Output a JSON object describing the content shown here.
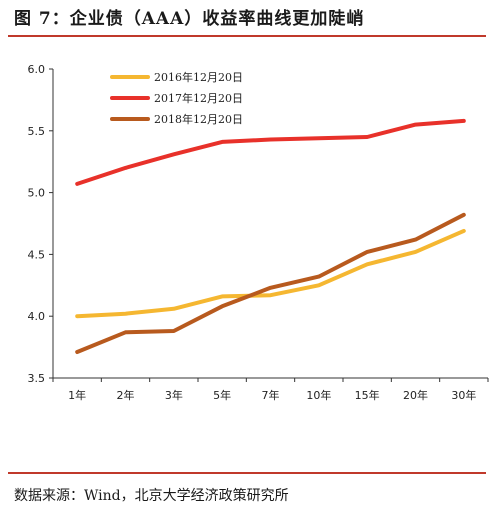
{
  "header": {
    "title": "图 7：企业债（AAA）收益率曲线更加陡峭"
  },
  "footer": {
    "source": "数据来源：Wind，北京大学经济政策研究所"
  },
  "chart_data": {
    "type": "line",
    "title": "",
    "xlabel": "",
    "ylabel": "",
    "categories": [
      "1年",
      "2年",
      "3年",
      "5年",
      "7年",
      "10年",
      "15年",
      "20年",
      "30年"
    ],
    "ylim": [
      3.5,
      6.0
    ],
    "yticks": [
      "3.5",
      "4.0",
      "4.5",
      "5.0",
      "5.5",
      "6.0"
    ],
    "grid": false,
    "legend": "top-left",
    "series": [
      {
        "name": "2016年12月20日",
        "color": "#f5b731",
        "values": [
          4.0,
          4.02,
          4.06,
          4.16,
          4.17,
          4.25,
          4.42,
          4.52,
          4.69
        ]
      },
      {
        "name": "2017年12月20日",
        "color": "#e8312a",
        "values": [
          5.07,
          5.2,
          5.31,
          5.41,
          5.43,
          5.44,
          5.45,
          5.55,
          5.58
        ]
      },
      {
        "name": "2018年12月20日",
        "color": "#b85a1e",
        "values": [
          3.71,
          3.87,
          3.88,
          4.08,
          4.23,
          4.32,
          4.52,
          4.62,
          4.82
        ]
      }
    ]
  }
}
